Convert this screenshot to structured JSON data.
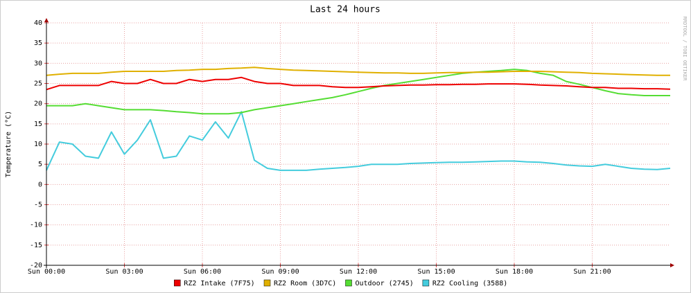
{
  "chart_data": {
    "type": "line",
    "title": "Last 24 hours",
    "y_label": "Temperature (°C)",
    "watermark": "RRDTOOL / TOBI OETIKER",
    "x": [
      0,
      0.5,
      1,
      1.5,
      2,
      2.5,
      3,
      3.5,
      4,
      4.5,
      5,
      5.5,
      6,
      6.5,
      7,
      7.5,
      8,
      8.5,
      9,
      9.5,
      10,
      10.5,
      11,
      11.5,
      12,
      12.5,
      13,
      13.5,
      14,
      14.5,
      15,
      15.5,
      16,
      16.5,
      17,
      17.5,
      18,
      18.5,
      19,
      19.5,
      20,
      20.5,
      21,
      21.5,
      22,
      22.5,
      23,
      23.5,
      24
    ],
    "xlim": [
      0,
      24
    ],
    "xticks": [
      {
        "value": 0,
        "label": "Sun 00:00"
      },
      {
        "value": 3,
        "label": "Sun 03:00"
      },
      {
        "value": 6,
        "label": "Sun 06:00"
      },
      {
        "value": 9,
        "label": "Sun 09:00"
      },
      {
        "value": 12,
        "label": "Sun 12:00"
      },
      {
        "value": 15,
        "label": "Sun 15:00"
      },
      {
        "value": 18,
        "label": "Sun 18:00"
      },
      {
        "value": 21,
        "label": "Sun 21:00"
      }
    ],
    "ylim": [
      -20,
      40
    ],
    "yticks": [
      -20,
      -15,
      -10,
      -5,
      0,
      5,
      10,
      15,
      20,
      25,
      30,
      35,
      40
    ],
    "grid": true,
    "legend": "bottom",
    "series": [
      {
        "name": "RZ2 Intake (7F75)",
        "color": "#ee0000",
        "values": [
          23.5,
          24.5,
          24.5,
          24.5,
          24.5,
          25.5,
          25,
          25,
          26,
          25,
          25,
          26,
          25.5,
          26,
          26,
          26.5,
          25.5,
          25,
          25,
          24.5,
          24.5,
          24.5,
          24.2,
          24,
          24,
          24.2,
          24.4,
          24.5,
          24.6,
          24.6,
          24.7,
          24.7,
          24.8,
          24.8,
          24.9,
          24.9,
          24.9,
          24.8,
          24.6,
          24.5,
          24.4,
          24.2,
          24,
          24,
          23.8,
          23.8,
          23.7,
          23.7,
          23.6
        ]
      },
      {
        "name": "RZ2 Room (3D7C)",
        "color": "#e0b000",
        "values": [
          27,
          27.3,
          27.5,
          27.5,
          27.5,
          27.8,
          28,
          28,
          28,
          28,
          28.2,
          28.3,
          28.5,
          28.5,
          28.7,
          28.8,
          29,
          28.7,
          28.5,
          28.3,
          28.2,
          28.1,
          28,
          27.9,
          27.8,
          27.7,
          27.6,
          27.6,
          27.5,
          27.5,
          27.6,
          27.7,
          27.7,
          27.8,
          27.8,
          27.9,
          28,
          28,
          28,
          27.9,
          27.8,
          27.7,
          27.5,
          27.4,
          27.3,
          27.2,
          27.1,
          27,
          27
        ]
      },
      {
        "name": "Outdoor (2745)",
        "color": "#55dd33",
        "values": [
          19.5,
          19.5,
          19.5,
          20,
          19.5,
          19,
          18.5,
          18.5,
          18.5,
          18.3,
          18,
          17.8,
          17.5,
          17.5,
          17.5,
          17.8,
          18.5,
          19,
          19.5,
          20,
          20.5,
          21,
          21.5,
          22.2,
          23,
          23.8,
          24.5,
          25,
          25.5,
          26,
          26.5,
          27,
          27.5,
          27.8,
          28,
          28.2,
          28.5,
          28.2,
          27.5,
          27,
          25.5,
          24.8,
          24,
          23.2,
          22.5,
          22.2,
          22,
          22,
          22
        ]
      },
      {
        "name": "RZ2 Cooling (3588)",
        "color": "#44ccdd",
        "values": [
          3.5,
          10.5,
          10,
          7,
          6.5,
          13,
          7.5,
          11,
          16,
          6.5,
          7,
          12,
          11,
          15.5,
          11.5,
          18,
          6,
          4,
          3.5,
          3.5,
          3.5,
          3.8,
          4,
          4.2,
          4.5,
          5,
          5,
          5,
          5.2,
          5.3,
          5.4,
          5.5,
          5.5,
          5.6,
          5.7,
          5.8,
          5.8,
          5.6,
          5.5,
          5.2,
          4.8,
          4.6,
          4.5,
          5,
          4.5,
          4,
          3.8,
          3.7,
          4
        ]
      }
    ]
  }
}
